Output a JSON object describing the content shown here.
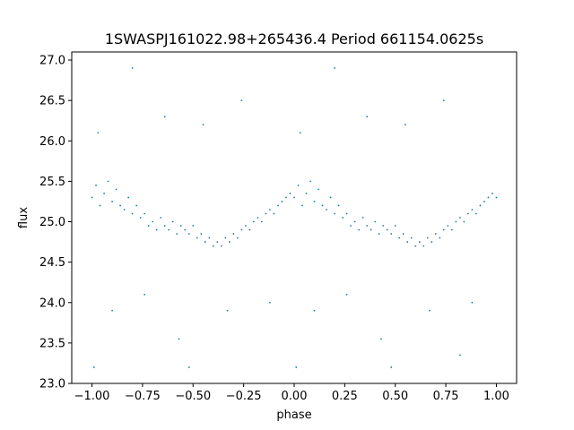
{
  "chart_data": {
    "type": "scatter",
    "title": "1SWASPJ161022.98+265436.4 Period 661154.0625s",
    "xlabel": "phase",
    "ylabel": "flux",
    "xlim": [
      -1.1,
      1.1
    ],
    "ylim": [
      23.0,
      27.1
    ],
    "x_ticks": [
      -1.0,
      -0.75,
      -0.5,
      -0.25,
      0.0,
      0.25,
      0.5,
      0.75,
      1.0
    ],
    "x_tick_labels": [
      "−1.00",
      "−0.75",
      "−0.50",
      "−0.25",
      "0.00",
      "0.25",
      "0.50",
      "0.75",
      "1.00"
    ],
    "y_ticks": [
      23.0,
      23.5,
      24.0,
      24.5,
      25.0,
      25.5,
      26.0,
      26.5,
      27.0
    ],
    "y_tick_labels": [
      "23.0",
      "23.5",
      "24.0",
      "24.5",
      "25.0",
      "25.5",
      "26.0",
      "26.5",
      "27.0"
    ],
    "grid": false,
    "legend": "none",
    "marker_color": "#1f77b4",
    "points": [
      [
        -1.0,
        25.3
      ],
      [
        -0.98,
        25.45
      ],
      [
        -0.96,
        25.2
      ],
      [
        -0.94,
        25.35
      ],
      [
        -0.92,
        25.5
      ],
      [
        -0.9,
        25.25
      ],
      [
        -0.88,
        25.4
      ],
      [
        -0.86,
        25.2
      ],
      [
        -0.84,
        25.15
      ],
      [
        -0.82,
        25.3
      ],
      [
        -0.8,
        25.1
      ],
      [
        -0.78,
        25.2
      ],
      [
        -0.76,
        25.05
      ],
      [
        -0.74,
        25.1
      ],
      [
        -0.72,
        24.95
      ],
      [
        -0.7,
        25.0
      ],
      [
        -0.68,
        24.9
      ],
      [
        -0.66,
        25.05
      ],
      [
        -0.64,
        24.95
      ],
      [
        -0.62,
        24.9
      ],
      [
        -0.6,
        25.0
      ],
      [
        -0.58,
        24.85
      ],
      [
        -0.56,
        24.95
      ],
      [
        -0.54,
        24.9
      ],
      [
        -0.52,
        24.85
      ],
      [
        -0.5,
        24.95
      ],
      [
        -0.48,
        24.8
      ],
      [
        -0.46,
        24.85
      ],
      [
        -0.44,
        24.75
      ],
      [
        -0.42,
        24.8
      ],
      [
        -0.4,
        24.7
      ],
      [
        -0.38,
        24.75
      ],
      [
        -0.36,
        24.7
      ],
      [
        -0.34,
        24.8
      ],
      [
        -0.32,
        24.75
      ],
      [
        -0.3,
        24.85
      ],
      [
        -0.28,
        24.8
      ],
      [
        -0.26,
        24.9
      ],
      [
        -0.24,
        24.95
      ],
      [
        -0.22,
        24.9
      ],
      [
        -0.2,
        25.0
      ],
      [
        -0.18,
        25.05
      ],
      [
        -0.16,
        25.0
      ],
      [
        -0.14,
        25.1
      ],
      [
        -0.12,
        25.15
      ],
      [
        -0.1,
        25.1
      ],
      [
        -0.08,
        25.2
      ],
      [
        -0.06,
        25.25
      ],
      [
        -0.04,
        25.3
      ],
      [
        -0.02,
        25.35
      ],
      [
        0.0,
        25.3
      ],
      [
        0.02,
        25.45
      ],
      [
        0.04,
        25.2
      ],
      [
        0.06,
        25.35
      ],
      [
        0.08,
        25.5
      ],
      [
        0.1,
        25.25
      ],
      [
        0.12,
        25.4
      ],
      [
        0.14,
        25.2
      ],
      [
        0.16,
        25.15
      ],
      [
        0.18,
        25.3
      ],
      [
        0.2,
        25.1
      ],
      [
        0.22,
        25.2
      ],
      [
        0.24,
        25.05
      ],
      [
        0.26,
        25.1
      ],
      [
        0.28,
        24.95
      ],
      [
        0.3,
        25.0
      ],
      [
        0.32,
        24.9
      ],
      [
        0.34,
        25.05
      ],
      [
        0.36,
        24.95
      ],
      [
        0.38,
        24.9
      ],
      [
        0.4,
        25.0
      ],
      [
        0.42,
        24.85
      ],
      [
        0.44,
        24.95
      ],
      [
        0.46,
        24.9
      ],
      [
        0.48,
        24.85
      ],
      [
        0.5,
        24.95
      ],
      [
        0.52,
        24.8
      ],
      [
        0.54,
        24.85
      ],
      [
        0.56,
        24.75
      ],
      [
        0.58,
        24.8
      ],
      [
        0.6,
        24.7
      ],
      [
        0.62,
        24.75
      ],
      [
        0.64,
        24.7
      ],
      [
        0.66,
        24.8
      ],
      [
        0.68,
        24.75
      ],
      [
        0.7,
        24.85
      ],
      [
        0.72,
        24.8
      ],
      [
        0.74,
        24.9
      ],
      [
        0.76,
        24.95
      ],
      [
        0.78,
        24.9
      ],
      [
        0.8,
        25.0
      ],
      [
        0.82,
        25.05
      ],
      [
        0.84,
        25.0
      ],
      [
        0.86,
        25.1
      ],
      [
        0.88,
        25.15
      ],
      [
        0.9,
        25.1
      ],
      [
        0.92,
        25.2
      ],
      [
        0.94,
        25.25
      ],
      [
        0.96,
        25.3
      ],
      [
        0.98,
        25.35
      ],
      [
        1.0,
        25.3
      ],
      [
        -0.97,
        26.1
      ],
      [
        -0.9,
        23.9
      ],
      [
        -0.8,
        26.9
      ],
      [
        -0.74,
        24.1
      ],
      [
        -0.64,
        26.3
      ],
      [
        -0.57,
        23.55
      ],
      [
        -0.45,
        26.2
      ],
      [
        -0.33,
        23.9
      ],
      [
        -0.26,
        26.5
      ],
      [
        -0.12,
        24.0
      ],
      [
        0.03,
        26.1
      ],
      [
        0.1,
        23.9
      ],
      [
        0.2,
        26.9
      ],
      [
        0.26,
        24.1
      ],
      [
        0.36,
        26.3
      ],
      [
        0.43,
        23.55
      ],
      [
        0.55,
        26.2
      ],
      [
        0.67,
        23.9
      ],
      [
        0.74,
        26.5
      ],
      [
        0.88,
        24.0
      ],
      [
        -0.99,
        23.2
      ],
      [
        -0.52,
        23.2
      ],
      [
        0.01,
        23.2
      ],
      [
        0.48,
        23.2
      ],
      [
        0.82,
        23.35
      ]
    ]
  }
}
